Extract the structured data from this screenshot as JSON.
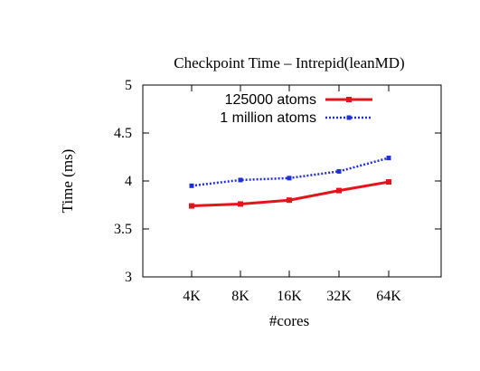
{
  "chart_data": {
    "type": "line",
    "title": "Checkpoint Time – Intrepid(leanMD)",
    "xlabel": "#cores",
    "ylabel": "Time (ms)",
    "categories": [
      "4K",
      "8K",
      "16K",
      "32K",
      "64K"
    ],
    "yticks": [
      "3",
      "3.5",
      "4",
      "4.5",
      "5"
    ],
    "ylim": [
      3,
      5
    ],
    "grid": false,
    "legend_position": "top-right",
    "series": [
      {
        "name": "125000 atoms",
        "values": [
          3.74,
          3.76,
          3.8,
          3.9,
          3.99
        ],
        "color": "#e3141a",
        "style": "solid",
        "marker": "square"
      },
      {
        "name": "1 million atoms",
        "values": [
          3.95,
          4.01,
          4.03,
          4.1,
          4.24
        ],
        "color": "#1f2fd6",
        "style": "dotted",
        "marker": "square"
      }
    ]
  }
}
